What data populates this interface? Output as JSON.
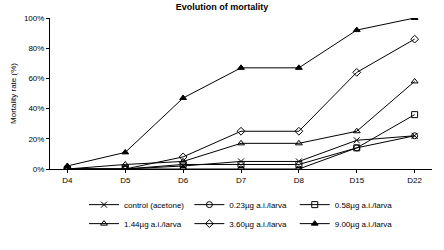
{
  "chart_data": {
    "type": "line",
    "title": "Evolution of mortality",
    "y_label": "Mortality rate (%)",
    "categories": [
      "D4",
      "D5",
      "D6",
      "D7",
      "D8",
      "D15",
      "D22"
    ],
    "series": [
      {
        "name": "control (acetone)",
        "color": "#000000",
        "marker": "x",
        "values": [
          0,
          0,
          2,
          5,
          5,
          19,
          22
        ]
      },
      {
        "name": "0.23µg a.i./larva",
        "color": "#000000",
        "marker": "circle-open",
        "values": [
          0,
          0,
          0,
          0,
          0,
          14,
          22
        ]
      },
      {
        "name": "0.58µg a.i./larva",
        "color": "#000000",
        "marker": "square-open",
        "values": [
          0,
          0,
          3,
          3,
          3,
          14,
          36
        ]
      },
      {
        "name": "1.44µg a.i./larva",
        "color": "#000000",
        "marker": "triangle-open",
        "values": [
          0,
          3,
          5,
          17,
          17,
          25,
          58
        ]
      },
      {
        "name": "3.60µg a.i./larva",
        "color": "#000000",
        "marker": "diamond-open",
        "values": [
          0,
          0,
          8,
          25,
          25,
          64,
          86
        ]
      },
      {
        "name": "9.00µg a.i./larva",
        "color": "#000000",
        "marker": "triangle",
        "values": [
          2,
          11,
          47,
          67,
          67,
          92,
          100
        ]
      }
    ],
    "ylim": [
      0,
      100
    ],
    "yticks": [
      {
        "value": 0,
        "label": "0%"
      },
      {
        "value": 20,
        "label": "20%"
      },
      {
        "value": 40,
        "label": "40%"
      },
      {
        "value": 60,
        "label": "60%"
      },
      {
        "value": 80,
        "label": "80%"
      },
      {
        "value": 100,
        "label": "100%"
      }
    ],
    "grid": false,
    "legend": "bottom"
  }
}
